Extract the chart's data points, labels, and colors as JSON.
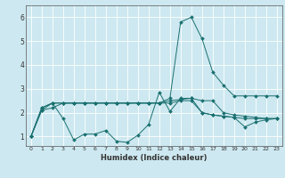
{
  "title": "",
  "xlabel": "Humidex (Indice chaleur)",
  "bg_color": "#cde8f0",
  "grid_color": "#ffffff",
  "line_color": "#1a7070",
  "xlim": [
    -0.5,
    23.5
  ],
  "ylim": [
    0.6,
    6.5
  ],
  "yticks": [
    1,
    2,
    3,
    4,
    5,
    6
  ],
  "xticks": [
    0,
    1,
    2,
    3,
    4,
    5,
    6,
    7,
    8,
    9,
    10,
    11,
    12,
    13,
    14,
    15,
    16,
    17,
    18,
    19,
    20,
    21,
    22,
    23
  ],
  "lines": [
    [
      1.0,
      2.2,
      2.4,
      1.75,
      0.85,
      1.1,
      1.1,
      1.25,
      0.8,
      0.75,
      1.05,
      1.5,
      2.85,
      2.05,
      2.6,
      2.6,
      2.0,
      1.9,
      1.85,
      1.8,
      1.4,
      1.6,
      1.7,
      1.75
    ],
    [
      1.0,
      2.2,
      2.4,
      2.4,
      2.4,
      2.4,
      2.4,
      2.4,
      2.4,
      2.4,
      2.4,
      2.4,
      2.4,
      2.6,
      5.8,
      6.0,
      5.1,
      3.7,
      3.15,
      2.7,
      2.7,
      2.7,
      2.7,
      2.7
    ],
    [
      1.0,
      2.1,
      2.4,
      2.4,
      2.4,
      2.4,
      2.4,
      2.4,
      2.4,
      2.4,
      2.4,
      2.4,
      2.4,
      2.5,
      2.55,
      2.6,
      2.5,
      2.5,
      2.0,
      1.9,
      1.85,
      1.8,
      1.75,
      1.75
    ],
    [
      1.0,
      2.1,
      2.2,
      2.4,
      2.4,
      2.4,
      2.4,
      2.4,
      2.4,
      2.4,
      2.4,
      2.4,
      2.4,
      2.4,
      2.5,
      2.5,
      2.0,
      1.9,
      1.85,
      1.8,
      1.75,
      1.75,
      1.75,
      1.75
    ]
  ]
}
